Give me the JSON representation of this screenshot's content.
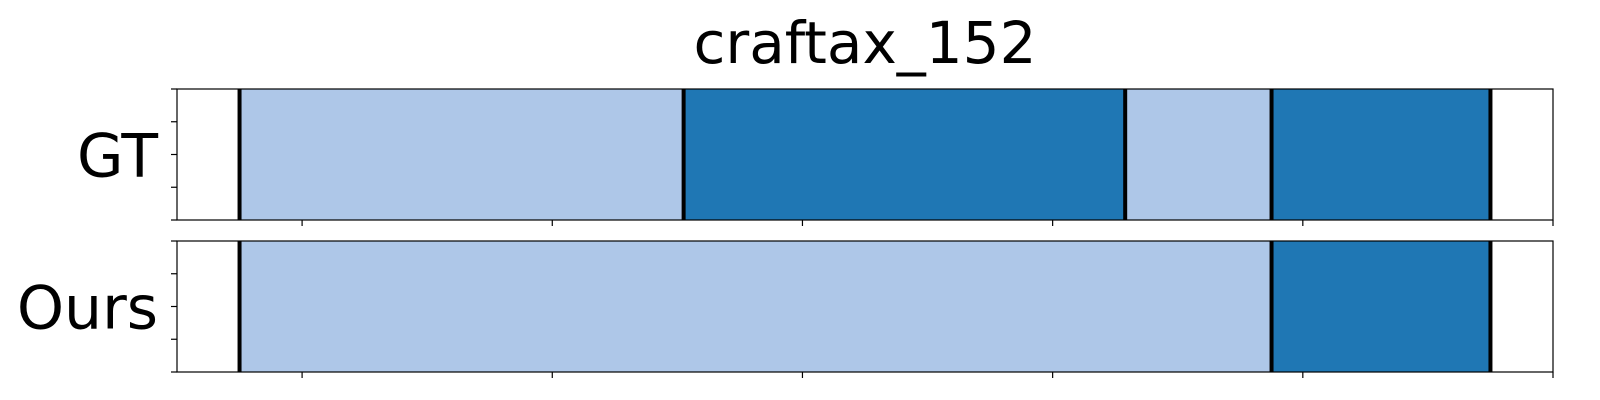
{
  "chart_data": {
    "type": "bar",
    "title": "craftax_152",
    "xlim": [
      -1.0,
      10.0
    ],
    "xticks": [
      0,
      2,
      4,
      6,
      8,
      10
    ],
    "ylim": [
      0,
      1
    ],
    "yticks": [
      0,
      0.25,
      0.5,
      0.75,
      1.0
    ],
    "colors": {
      "light": "#aec7e8",
      "dark": "#1f77b4",
      "boundary": "#000000"
    },
    "rows": [
      {
        "label": "GT",
        "segments": [
          {
            "start": -0.5,
            "end": 3.05,
            "color": "light"
          },
          {
            "start": 3.05,
            "end": 6.58,
            "color": "dark"
          },
          {
            "start": 6.58,
            "end": 7.75,
            "color": "light"
          },
          {
            "start": 7.75,
            "end": 9.5,
            "color": "dark"
          }
        ]
      },
      {
        "label": "Ours",
        "segments": [
          {
            "start": -0.5,
            "end": 7.75,
            "color": "light"
          },
          {
            "start": 7.75,
            "end": 9.5,
            "color": "dark"
          }
        ]
      }
    ]
  }
}
